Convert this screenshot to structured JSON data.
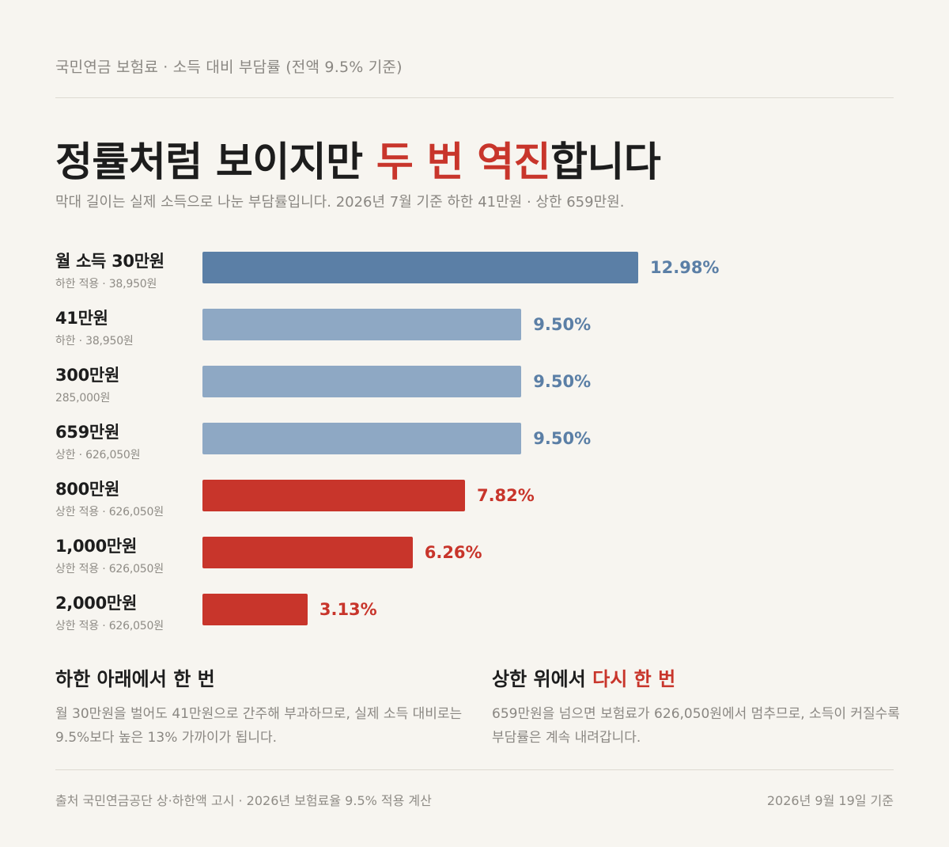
{
  "header": {
    "kicker": "국민연금 보험료 · 소득 대비 부담률 (전액 9.5% 기준)",
    "headline_pre": "정률처럼 보이지만 ",
    "headline_accent": "두 번 역진",
    "headline_post": "합니다",
    "subtitle": "막대 길이는 실제 소득으로 나눈 부담률입니다. 2026년 7월 기준 하한 41만원 · 상한 659만원."
  },
  "colors": {
    "below_floor": "#5b7fa6",
    "flat": "#8ea8c4",
    "flat_text": "#5b7fa6",
    "above_cap": "#c8352b",
    "background": "#f7f5f0"
  },
  "chart_data": {
    "type": "bar",
    "orientation": "horizontal",
    "categories": [
      "월 소득 30만원",
      "41만원",
      "300만원",
      "659만원",
      "800만원",
      "1,000만원",
      "2,000만원"
    ],
    "sublabels": [
      "하한 적용 · 38,950원",
      "하한 · 38,950원",
      "285,000원",
      "상한 · 626,050원",
      "상한 적용 · 626,050원",
      "상한 적용 · 626,050원",
      "상한 적용 · 626,050원"
    ],
    "values": [
      12.98,
      9.5,
      9.5,
      9.5,
      7.82,
      6.26,
      3.13
    ],
    "value_labels": [
      "12.98%",
      "9.50%",
      "9.50%",
      "9.50%",
      "7.82%",
      "6.26%",
      "3.13%"
    ],
    "groups": [
      "below_floor",
      "flat",
      "flat",
      "flat",
      "above_cap",
      "above_cap",
      "above_cap"
    ],
    "xlim": [
      0,
      13
    ],
    "unit": "%",
    "grid": false,
    "title": "",
    "xlabel": "",
    "ylabel": ""
  },
  "notes": [
    {
      "title_pre": "하한 아래에서 한 번",
      "title_accent": "",
      "body": "월 30만원을 벌어도 41만원으로 간주해 부과하므로, 실제 소득 대비로는 9.5%보다 높은 13% 가까이가 됩니다."
    },
    {
      "title_pre": "상한 위에서 ",
      "title_accent": "다시 한 번",
      "body": "659만원을 넘으면 보험료가 626,050원에서 멈추므로, 소득이 커질수록 부담률은 계속 내려갑니다."
    }
  ],
  "footer": {
    "source": "출처 국민연금공단 상·하한액 고시 · 2026년 보험료율 9.5% 적용 계산",
    "date": "2026년 9월 19일 기준"
  }
}
